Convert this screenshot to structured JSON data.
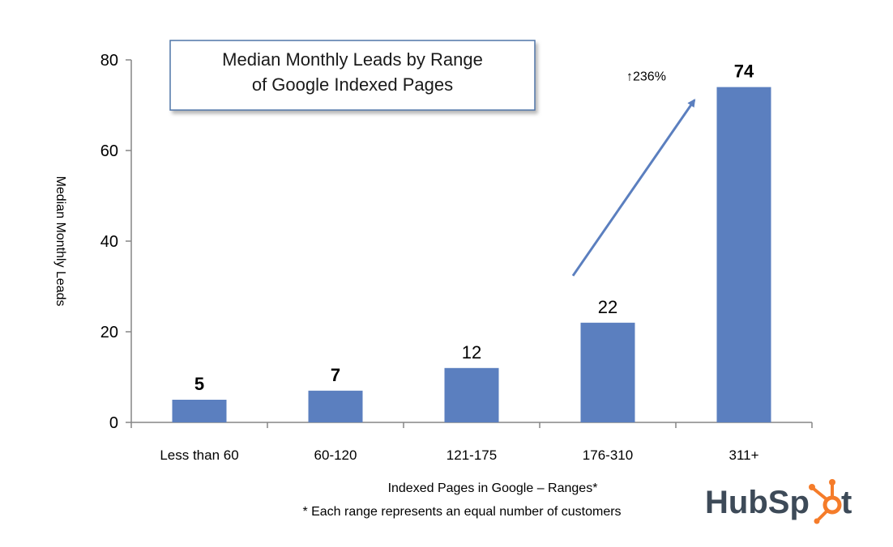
{
  "chart_data": {
    "type": "bar",
    "title_lines": [
      "Median Monthly Leads by Range",
      "of Google Indexed Pages"
    ],
    "ylabel": "Median Monthly Leads",
    "xlabel": "Indexed Pages in Google – Ranges*",
    "footnote": "* Each range represents an equal number of customers",
    "categories": [
      "Less than 60",
      "60-120",
      "121-175",
      "176-310",
      "311+"
    ],
    "values": [
      5,
      7,
      12,
      22,
      74
    ],
    "value_labels": [
      "5",
      "7",
      "12",
      "22",
      "74"
    ],
    "ylim": [
      0,
      80
    ],
    "yticks": [
      0,
      20,
      40,
      60,
      80
    ],
    "ytick_labels": [
      "0",
      "20",
      "40",
      "60",
      "80"
    ],
    "grid": false,
    "legend": "none",
    "bar_color": "#5b7fbf",
    "annotation": {
      "text": "↑236%",
      "from_category": "176-310",
      "to_category": "311+",
      "arrow_color": "#5b7fbf"
    }
  },
  "logo": {
    "text": "HubSpot",
    "accent_color": "#f57c2a",
    "text_color": "#3d4a58"
  }
}
